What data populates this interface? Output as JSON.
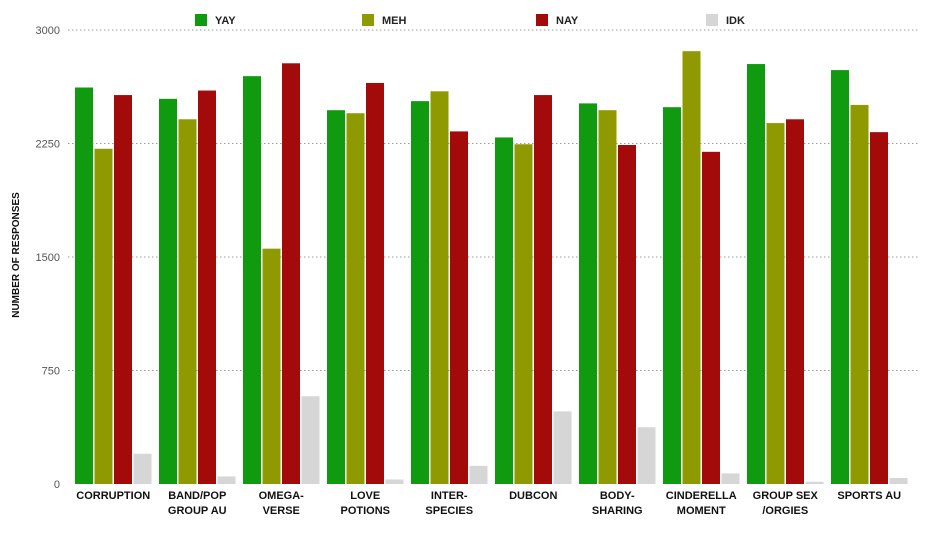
{
  "chart_data": {
    "type": "bar",
    "title": "",
    "xlabel": "",
    "ylabel": "NUMBER OF RESPONSES",
    "ylim": [
      0,
      3000
    ],
    "yticks": [
      0,
      750,
      1500,
      2250,
      3000
    ],
    "grid": true,
    "legend_position": "top",
    "categories": [
      "CORRUPTION",
      "BAND/POP GROUP AU",
      "OMEGA-VERSE",
      "LOVE POTIONS",
      "INTER-SPECIES",
      "DUBCON",
      "BODY-SHARING",
      "CINDERELLA MOMENT",
      "GROUP SEX /ORGIES",
      "SPORTS AU"
    ],
    "category_label_lines": [
      [
        "CORRUPTION"
      ],
      [
        "BAND/POP",
        "GROUP AU"
      ],
      [
        "OMEGA-",
        "VERSE"
      ],
      [
        "LOVE",
        "POTIONS"
      ],
      [
        "INTER-",
        "SPECIES"
      ],
      [
        "DUBCON"
      ],
      [
        "BODY-",
        "SHARING"
      ],
      [
        "CINDERELLA",
        "MOMENT"
      ],
      [
        "GROUP SEX",
        "/ORGIES"
      ],
      [
        "SPORTS AU"
      ]
    ],
    "series": [
      {
        "name": "YAY",
        "color": "#0f9a0f",
        "values": [
          2620,
          2545,
          2695,
          2470,
          2530,
          2290,
          2515,
          2490,
          2775,
          2735
        ]
      },
      {
        "name": "MEH",
        "color": "#8f9900",
        "values": [
          2215,
          2410,
          1555,
          2450,
          2595,
          2245,
          2470,
          2860,
          2385,
          2505
        ]
      },
      {
        "name": "NAY",
        "color": "#a30a0a",
        "values": [
          2570,
          2600,
          2780,
          2650,
          2330,
          2570,
          2240,
          2195,
          2410,
          2325
        ]
      },
      {
        "name": "IDK",
        "color": "#d6d6d6",
        "values": [
          200,
          50,
          580,
          30,
          120,
          480,
          375,
          70,
          15,
          40
        ]
      }
    ]
  }
}
